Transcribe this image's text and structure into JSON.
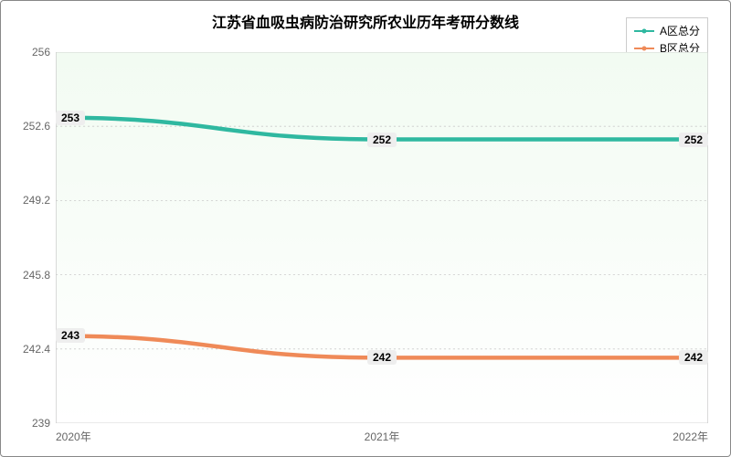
{
  "chart": {
    "type": "line",
    "title": "江苏省血吸虫病防治研究所农业历年考研分数线",
    "title_fontsize": 16,
    "background_gradient": {
      "top": "#f2fbf2",
      "bottom": "#ffffff"
    },
    "grid_color": "#cccccc",
    "grid_dash": "3,4",
    "text_color": "#666666",
    "label_fontsize": 12,
    "aspect_width": 800,
    "aspect_height": 500,
    "x": {
      "categories": [
        "2020年",
        "2021年",
        "2022年"
      ],
      "positions": [
        0,
        0.5,
        1
      ]
    },
    "y": {
      "min": 239,
      "max": 256,
      "ticks": [
        239,
        242.4,
        245.8,
        249.2,
        252.6,
        256
      ]
    },
    "series": [
      {
        "name": "A区总分",
        "color": "#2fb8a0",
        "marker": "circle",
        "line_width": 1.5,
        "values": [
          253,
          252,
          252
        ]
      },
      {
        "name": "B区总分",
        "color": "#ef8a58",
        "marker": "circle",
        "line_width": 1.5,
        "values": [
          243,
          242,
          242
        ]
      }
    ]
  }
}
